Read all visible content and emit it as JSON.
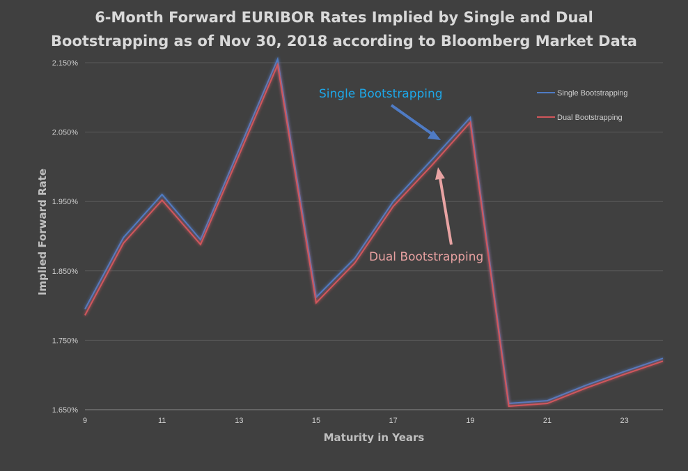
{
  "chart_data": {
    "type": "line",
    "title": "6-Month Forward EURIBOR Rates Implied by Single and Dual Bootstrapping as of Nov 30, 2018 according to Bloomberg Market Data",
    "title_lines": [
      "6-Month Forward EURIBOR Rates Implied by Single and Dual",
      "Bootstrapping as of Nov 30, 2018 according to Bloomberg Market Data"
    ],
    "xlabel": "Maturity in Years",
    "ylabel": "Implied Forward Rate",
    "x": [
      9,
      10,
      11,
      12,
      13,
      14,
      15,
      16,
      17,
      18,
      19,
      20,
      21,
      22,
      23,
      24
    ],
    "x_ticks": [
      "9",
      "11",
      "13",
      "15",
      "17",
      "19",
      "21",
      "23"
    ],
    "y_ticks": [
      "1.650%",
      "1.750%",
      "1.850%",
      "1.950%",
      "2.050%",
      "2.150%"
    ],
    "xlim": [
      9,
      24
    ],
    "ylim": [
      1.65,
      2.155
    ],
    "grid": "horizontal",
    "legend_position": "top-right",
    "series": [
      {
        "name": "Single Bootstrapping",
        "color": "#4f7bc4",
        "values": [
          1.795,
          1.898,
          1.96,
          1.895,
          2.025,
          2.155,
          1.812,
          1.868,
          1.95,
          2.01,
          2.071,
          1.659,
          1.663,
          1.685,
          1.705,
          1.724
        ]
      },
      {
        "name": "Dual Bootstrapping",
        "color": "#d1565b",
        "values": [
          1.786,
          1.89,
          1.952,
          1.888,
          2.017,
          2.147,
          1.804,
          1.861,
          1.943,
          2.002,
          2.064,
          1.655,
          1.659,
          1.681,
          1.701,
          1.72
        ]
      }
    ],
    "annotations": [
      {
        "text": "Single Bootstrapping",
        "color": "#1ea7e8",
        "arrow_color": "#4f7bc4"
      },
      {
        "text": "Dual Bootstrapping",
        "color": "#e7a0a0",
        "arrow_color": "#e8a3a3"
      }
    ]
  }
}
